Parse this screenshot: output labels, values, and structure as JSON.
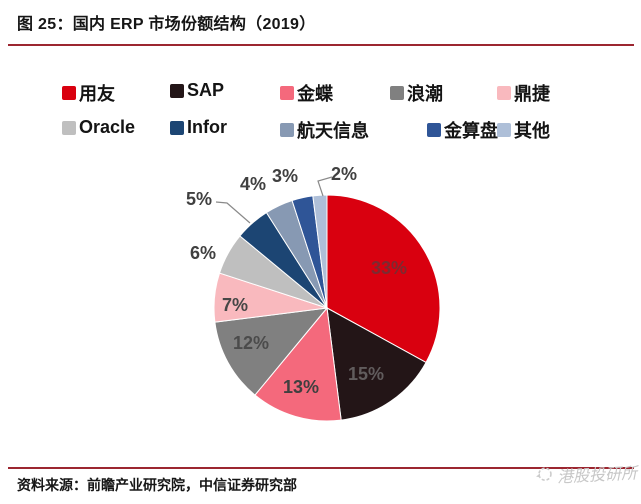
{
  "figure": {
    "title": "图 25：国内 ERP 市场份额结构（2019）",
    "source": "资料来源：前瞻产业研究院，中信证券研究部",
    "watermark": "港股投研所"
  },
  "style": {
    "accent_rule_color": "#9C2630"
  },
  "chart_data": {
    "type": "pie",
    "title": "国内 ERP 市场份额结构（2019）",
    "legend_position": "top",
    "legend_rows": [
      5,
      5
    ],
    "start_angle_deg": 0,
    "direction": "clockwise",
    "slices": [
      {
        "label": "用友",
        "value": 33,
        "percent_label": "33%",
        "color": "#D9000F"
      },
      {
        "label": "SAP",
        "value": 15,
        "percent_label": "15%",
        "color": "#231517"
      },
      {
        "label": "金蝶",
        "value": 13,
        "percent_label": "13%",
        "color": "#F4697C"
      },
      {
        "label": "浪潮",
        "value": 12,
        "percent_label": "12%",
        "color": "#808080"
      },
      {
        "label": "鼎捷",
        "value": 7,
        "percent_label": "7%",
        "color": "#F9B9BE"
      },
      {
        "label": "Oracle",
        "value": 6,
        "percent_label": "6%",
        "color": "#BFBFBF"
      },
      {
        "label": "Infor",
        "value": 5,
        "percent_label": "5%",
        "color": "#1C4573"
      },
      {
        "label": "航天信息",
        "value": 4,
        "percent_label": "4%",
        "color": "#8799B3"
      },
      {
        "label": "金算盘",
        "value": 3,
        "percent_label": "3%",
        "color": "#2F5597"
      },
      {
        "label": "其他",
        "value": 2,
        "percent_label": "2%",
        "color": "#AEBFD8"
      }
    ]
  }
}
